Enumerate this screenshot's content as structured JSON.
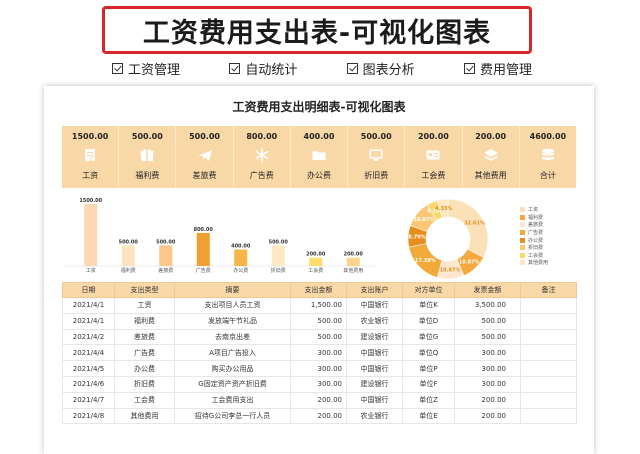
{
  "banner": {
    "title": "工资费用支出表-可视化图表"
  },
  "features": [
    "工资管理",
    "自动统计",
    "图表分析",
    "费用管理"
  ],
  "sheet": {
    "title": "工资费用支出明细表-可视化图表"
  },
  "cards": [
    {
      "amount": "1500.00",
      "name": "工资",
      "icon": "wage-doc-icon"
    },
    {
      "amount": "500.00",
      "name": "福利费",
      "icon": "gift-icon"
    },
    {
      "amount": "500.00",
      "name": "差旅费",
      "icon": "airplane-icon"
    },
    {
      "amount": "800.00",
      "name": "广告费",
      "icon": "snowflake-icon"
    },
    {
      "amount": "400.00",
      "name": "办公费",
      "icon": "folder-icon"
    },
    {
      "amount": "500.00",
      "name": "折旧费",
      "icon": "monitor-icon"
    },
    {
      "amount": "200.00",
      "name": "工会费",
      "icon": "id-card-icon"
    },
    {
      "amount": "200.00",
      "name": "其他费用",
      "icon": "layers-icon"
    },
    {
      "amount": "4600.00",
      "name": "合计",
      "icon": "database-icon"
    }
  ],
  "colors": {
    "card_bg": "#f9d8a8",
    "bars": [
      "#fad9b3",
      "#fde4bf",
      "#fbc78a",
      "#f0a030",
      "#f7b54a",
      "#fde9c3",
      "#fddc6a",
      "#fdd28a"
    ],
    "donut": [
      "#fbe1b8",
      "#f6a73d",
      "#fde8cf",
      "#f2a93a",
      "#e58e1e",
      "#fcc774",
      "#fcd86a",
      "#fde7c0"
    ],
    "label_text": "#ffffff"
  },
  "chart_data": [
    {
      "type": "bar",
      "categories": [
        "工资",
        "福利费",
        "差旅费",
        "广告费",
        "办公费",
        "折旧费",
        "工会费",
        "其他费用"
      ],
      "values": [
        1500,
        500,
        500,
        800,
        400,
        500,
        200,
        200
      ],
      "data_labels": [
        "1500.00",
        "500.00",
        "500.00",
        "800.00",
        "400.00",
        "500.00",
        "200.00",
        "200.00"
      ],
      "ylim": [
        0,
        1500
      ]
    },
    {
      "type": "pie",
      "categories": [
        "工资",
        "福利费",
        "差旅费",
        "广告费",
        "办公费",
        "折旧费",
        "工会费",
        "其他费用"
      ],
      "values": [
        32.61,
        10.87,
        10.87,
        17.39,
        8.7,
        10.87,
        4.35,
        4.35
      ],
      "data_labels": [
        "32.61%",
        "10.87%",
        "10.87%",
        "17.39%",
        "8.70%",
        "10.87%",
        "4.35%",
        "4.35%"
      ],
      "legend_position": "right"
    }
  ],
  "legend": [
    "工资",
    "福利费",
    "差旅费",
    "广告费",
    "办公费",
    "折旧费",
    "工会费",
    "其他费用"
  ],
  "table": {
    "headers": [
      "日期",
      "支出类型",
      "摘要",
      "支出金额",
      "支出账户",
      "对方单位",
      "发票金额",
      "备注"
    ],
    "rows": [
      [
        "2021/4/1",
        "工资",
        "支出项目人员工资",
        "1,500.00",
        "中国银行",
        "单位K",
        "3,500.00",
        ""
      ],
      [
        "2021/4/1",
        "福利费",
        "发放端午节礼品",
        "500.00",
        "农业银行",
        "单位D",
        "500.00",
        ""
      ],
      [
        "2021/4/2",
        "差旅费",
        "去南京出差",
        "500.00",
        "建设银行",
        "单位G",
        "500.00",
        ""
      ],
      [
        "2021/4/4",
        "广告费",
        "A项目广告投入",
        "300.00",
        "中国银行",
        "单位Q",
        "300.00",
        ""
      ],
      [
        "2021/4/5",
        "办公费",
        "购买办公用品",
        "300.00",
        "中国银行",
        "单位P",
        "300.00",
        ""
      ],
      [
        "2021/4/6",
        "折旧费",
        "G固定资产资产折旧费",
        "300.00",
        "建设银行",
        "单位F",
        "300.00",
        ""
      ],
      [
        "2021/4/7",
        "工会费",
        "工会费用支出",
        "200.00",
        "中国银行",
        "单位Z",
        "200.00",
        ""
      ],
      [
        "2021/4/8",
        "其他费用",
        "招待G公司李总一行人员",
        "200.00",
        "农业银行",
        "单位E",
        "200.00",
        ""
      ]
    ]
  }
}
